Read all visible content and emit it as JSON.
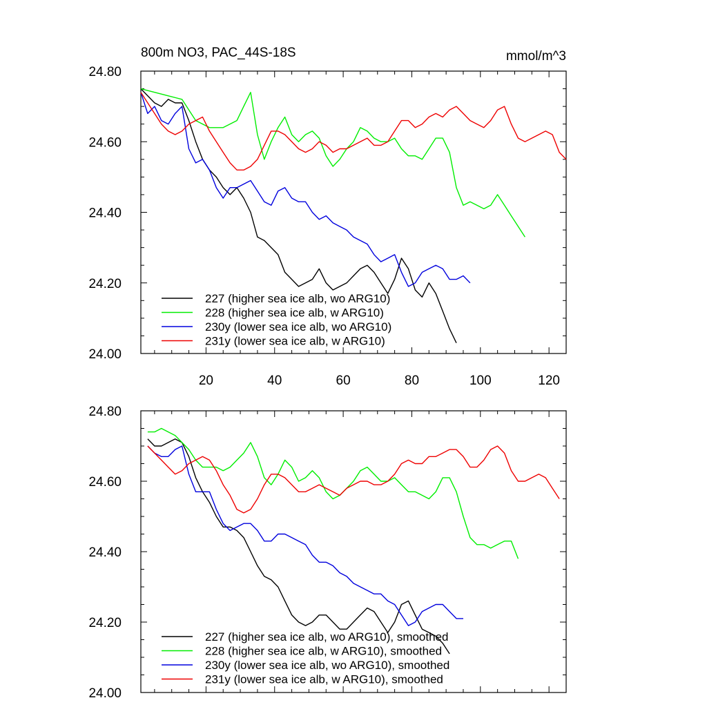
{
  "page": {
    "title": "800m NO3, PAC_44S-18S",
    "units": "mmol/m^3"
  },
  "chart_data": [
    {
      "type": "line",
      "title": "800m NO3, PAC_44S-18S",
      "units": "mmol/m^3",
      "xlim": [
        1,
        125
      ],
      "ylim": [
        24.0,
        24.8
      ],
      "xticks": [
        20,
        40,
        60,
        80,
        100,
        120
      ],
      "xtick_labels": [
        "20",
        "40",
        "60",
        "80",
        "100",
        "120"
      ],
      "yticks": [
        24.0,
        24.2,
        24.4,
        24.6,
        24.8
      ],
      "ytick_labels": [
        "24.00",
        "24.20",
        "24.40",
        "24.60",
        "24.80"
      ],
      "legend_position": "bottom-left",
      "series": [
        {
          "name": "227 (higher sea ice alb, wo ARG10)",
          "color": "#000000",
          "x": [
            1,
            3,
            5,
            7,
            9,
            11,
            13,
            15,
            17,
            19,
            21,
            23,
            25,
            27,
            29,
            31,
            33,
            35,
            37,
            39,
            41,
            43,
            45,
            47,
            49,
            51,
            53,
            55,
            57,
            59,
            61,
            63,
            65,
            67,
            69,
            71,
            73,
            75,
            77,
            79,
            81,
            83,
            85,
            87,
            89,
            91,
            93
          ],
          "values": [
            24.75,
            24.73,
            24.71,
            24.7,
            24.72,
            24.71,
            24.71,
            24.66,
            24.6,
            24.55,
            24.52,
            24.5,
            24.47,
            24.45,
            24.47,
            24.44,
            24.4,
            24.33,
            24.32,
            24.3,
            24.28,
            24.23,
            24.21,
            24.19,
            24.2,
            24.21,
            24.24,
            24.2,
            24.18,
            24.19,
            24.2,
            24.22,
            24.24,
            24.25,
            24.23,
            24.2,
            24.17,
            24.21,
            24.27,
            24.24,
            24.18,
            24.16,
            24.2,
            24.17,
            24.12,
            24.07,
            24.03
          ]
        },
        {
          "name": "228 (higher sea ice alb, w ARG10)",
          "color": "#00ee00",
          "x": [
            1,
            5,
            9,
            13,
            17,
            21,
            25,
            29,
            31,
            33,
            35,
            37,
            39,
            41,
            43,
            45,
            47,
            49,
            51,
            53,
            55,
            57,
            59,
            61,
            63,
            65,
            67,
            69,
            71,
            73,
            75,
            77,
            79,
            81,
            83,
            85,
            87,
            89,
            91,
            93,
            95,
            97,
            99,
            101,
            103,
            105,
            107,
            109,
            111,
            113
          ],
          "values": [
            24.75,
            24.74,
            24.73,
            24.72,
            24.66,
            24.64,
            24.64,
            24.66,
            24.7,
            24.74,
            24.62,
            24.55,
            24.6,
            24.64,
            24.67,
            24.62,
            24.6,
            24.62,
            24.63,
            24.61,
            24.56,
            24.53,
            24.55,
            24.58,
            24.6,
            24.64,
            24.63,
            24.61,
            24.6,
            24.6,
            24.61,
            24.58,
            24.56,
            24.56,
            24.55,
            24.58,
            24.61,
            24.61,
            24.57,
            24.47,
            24.42,
            24.43,
            24.42,
            24.41,
            24.42,
            24.45,
            24.42,
            24.39,
            24.36,
            24.33
          ]
        },
        {
          "name": "230y (lower sea ice alb, wo ARG10)",
          "color": "#0000dd",
          "x": [
            1,
            3,
            5,
            7,
            9,
            11,
            13,
            15,
            17,
            19,
            21,
            23,
            25,
            27,
            29,
            31,
            33,
            35,
            37,
            39,
            41,
            43,
            45,
            47,
            49,
            51,
            53,
            55,
            57,
            59,
            61,
            63,
            65,
            67,
            69,
            71,
            73,
            75,
            77,
            79,
            81,
            83,
            85,
            87,
            89,
            91,
            93,
            95,
            97
          ],
          "values": [
            24.74,
            24.68,
            24.7,
            24.66,
            24.65,
            24.68,
            24.7,
            24.58,
            24.54,
            24.55,
            24.52,
            24.47,
            24.44,
            24.47,
            24.47,
            24.48,
            24.49,
            24.46,
            24.43,
            24.42,
            24.46,
            24.47,
            24.44,
            24.43,
            24.43,
            24.4,
            24.38,
            24.39,
            24.37,
            24.36,
            24.35,
            24.33,
            24.32,
            24.31,
            24.28,
            24.26,
            24.27,
            24.28,
            24.23,
            24.19,
            24.2,
            24.23,
            24.24,
            24.25,
            24.24,
            24.21,
            24.21,
            24.22,
            24.2
          ]
        },
        {
          "name": "231y (lower sea ice alb, w ARG10)",
          "color": "#ee0000",
          "x": [
            1,
            3,
            5,
            7,
            9,
            11,
            13,
            15,
            17,
            19,
            21,
            23,
            25,
            27,
            29,
            31,
            33,
            35,
            37,
            39,
            41,
            43,
            45,
            47,
            49,
            51,
            53,
            55,
            57,
            59,
            61,
            63,
            65,
            67,
            69,
            71,
            73,
            75,
            77,
            79,
            81,
            83,
            85,
            87,
            89,
            91,
            93,
            95,
            97,
            99,
            101,
            103,
            105,
            107,
            109,
            111,
            113,
            115,
            117,
            119,
            121,
            123,
            125
          ],
          "values": [
            24.74,
            24.71,
            24.68,
            24.65,
            24.63,
            24.62,
            24.63,
            24.65,
            24.66,
            24.67,
            24.63,
            24.6,
            24.57,
            24.54,
            24.52,
            24.52,
            24.53,
            24.55,
            24.59,
            24.63,
            24.63,
            24.62,
            24.6,
            24.58,
            24.57,
            24.58,
            24.6,
            24.59,
            24.57,
            24.58,
            24.58,
            24.59,
            24.6,
            24.61,
            24.59,
            24.59,
            24.6,
            24.63,
            24.66,
            24.66,
            24.64,
            24.65,
            24.67,
            24.68,
            24.67,
            24.69,
            24.7,
            24.68,
            24.66,
            24.65,
            24.64,
            24.66,
            24.69,
            24.7,
            24.65,
            24.61,
            24.6,
            24.61,
            24.62,
            24.63,
            24.62,
            24.57,
            24.55
          ]
        }
      ]
    },
    {
      "type": "line",
      "xlim": [
        1,
        125
      ],
      "ylim": [
        24.0,
        24.8
      ],
      "xticks": [
        20,
        40,
        60,
        80,
        100,
        120
      ],
      "yticks": [
        24.0,
        24.2,
        24.4,
        24.6,
        24.8
      ],
      "ytick_labels": [
        "24.00",
        "24.20",
        "24.40",
        "24.60",
        "24.80"
      ],
      "legend_position": "bottom-left",
      "series": [
        {
          "name": "227 (higher sea ice alb, wo ARG10), smoothed",
          "color": "#000000",
          "x": [
            3,
            5,
            7,
            9,
            11,
            13,
            15,
            17,
            19,
            21,
            23,
            25,
            27,
            29,
            31,
            33,
            35,
            37,
            39,
            41,
            43,
            45,
            47,
            49,
            51,
            53,
            55,
            57,
            59,
            61,
            63,
            65,
            67,
            69,
            71,
            73,
            75,
            77,
            79,
            81,
            83,
            85,
            87,
            89,
            91
          ],
          "values": [
            24.72,
            24.7,
            24.7,
            24.71,
            24.72,
            24.71,
            24.67,
            24.61,
            24.57,
            24.54,
            24.5,
            24.47,
            24.47,
            24.46,
            24.44,
            24.4,
            24.36,
            24.33,
            24.32,
            24.3,
            24.26,
            24.22,
            24.2,
            24.19,
            24.2,
            24.22,
            24.22,
            24.2,
            24.18,
            24.18,
            24.2,
            24.22,
            24.24,
            24.23,
            24.2,
            24.17,
            24.2,
            24.25,
            24.26,
            24.22,
            24.18,
            24.17,
            24.16,
            24.14,
            24.11
          ]
        },
        {
          "name": "228 (higher sea ice alb, w ARG10), smoothed",
          "color": "#00ee00",
          "x": [
            3,
            5,
            7,
            9,
            11,
            13,
            15,
            17,
            19,
            21,
            23,
            25,
            27,
            29,
            31,
            33,
            35,
            37,
            39,
            41,
            43,
            45,
            47,
            49,
            51,
            53,
            55,
            57,
            59,
            61,
            63,
            65,
            67,
            69,
            71,
            73,
            75,
            77,
            79,
            81,
            83,
            85,
            87,
            89,
            91,
            93,
            95,
            97,
            99,
            101,
            103,
            105,
            107,
            109,
            111
          ],
          "values": [
            24.74,
            24.74,
            24.75,
            24.74,
            24.73,
            24.71,
            24.69,
            24.66,
            24.64,
            24.64,
            24.64,
            24.63,
            24.64,
            24.66,
            24.68,
            24.71,
            24.67,
            24.61,
            24.59,
            24.62,
            24.66,
            24.64,
            24.6,
            24.61,
            24.63,
            24.61,
            24.57,
            24.55,
            24.56,
            24.58,
            24.6,
            24.63,
            24.64,
            24.62,
            24.6,
            24.6,
            24.61,
            24.59,
            24.57,
            24.57,
            24.56,
            24.55,
            24.57,
            24.61,
            24.61,
            24.57,
            24.5,
            24.44,
            24.42,
            24.42,
            24.41,
            24.42,
            24.43,
            24.43,
            24.38
          ]
        },
        {
          "name": "230y (lower sea ice alb, wo ARG10), smoothed",
          "color": "#0000dd",
          "x": [
            3,
            5,
            7,
            9,
            11,
            13,
            15,
            17,
            19,
            21,
            23,
            25,
            27,
            29,
            31,
            33,
            35,
            37,
            39,
            41,
            43,
            45,
            47,
            49,
            51,
            53,
            55,
            57,
            59,
            61,
            63,
            65,
            67,
            69,
            71,
            73,
            75,
            77,
            79,
            81,
            83,
            85,
            87,
            89,
            91,
            93,
            95
          ],
          "values": [
            24.7,
            24.68,
            24.67,
            24.67,
            24.69,
            24.7,
            24.62,
            24.57,
            24.57,
            24.57,
            24.52,
            24.48,
            24.46,
            24.47,
            24.48,
            24.48,
            24.46,
            24.43,
            24.43,
            24.45,
            24.45,
            24.44,
            24.43,
            24.42,
            24.39,
            24.37,
            24.37,
            24.36,
            24.34,
            24.33,
            24.31,
            24.3,
            24.29,
            24.28,
            24.28,
            24.26,
            24.25,
            24.22,
            24.19,
            24.2,
            24.23,
            24.24,
            24.25,
            24.25,
            24.23,
            24.21,
            24.21
          ]
        },
        {
          "name": "231y (lower sea ice alb, w ARG10), smoothed",
          "color": "#ee0000",
          "x": [
            3,
            5,
            7,
            9,
            11,
            13,
            15,
            17,
            19,
            21,
            23,
            25,
            27,
            29,
            31,
            33,
            35,
            37,
            39,
            41,
            43,
            45,
            47,
            49,
            51,
            53,
            55,
            57,
            59,
            61,
            63,
            65,
            67,
            69,
            71,
            73,
            75,
            77,
            79,
            81,
            83,
            85,
            87,
            89,
            91,
            93,
            95,
            97,
            99,
            101,
            103,
            105,
            107,
            109,
            111,
            113,
            115,
            117,
            119,
            121,
            123
          ],
          "values": [
            24.7,
            24.68,
            24.66,
            24.64,
            24.62,
            24.63,
            24.65,
            24.66,
            24.67,
            24.66,
            24.63,
            24.59,
            24.56,
            24.52,
            24.51,
            24.52,
            24.55,
            24.59,
            24.62,
            24.62,
            24.61,
            24.59,
            24.57,
            24.57,
            24.58,
            24.59,
            24.58,
            24.57,
            24.56,
            24.58,
            24.59,
            24.6,
            24.6,
            24.59,
            24.59,
            24.6,
            24.62,
            24.65,
            24.66,
            24.65,
            24.65,
            24.67,
            24.67,
            24.68,
            24.69,
            24.69,
            24.67,
            24.64,
            24.64,
            24.66,
            24.69,
            24.7,
            24.68,
            24.63,
            24.6,
            24.6,
            24.61,
            24.62,
            24.61,
            24.58,
            24.55
          ]
        }
      ]
    }
  ]
}
